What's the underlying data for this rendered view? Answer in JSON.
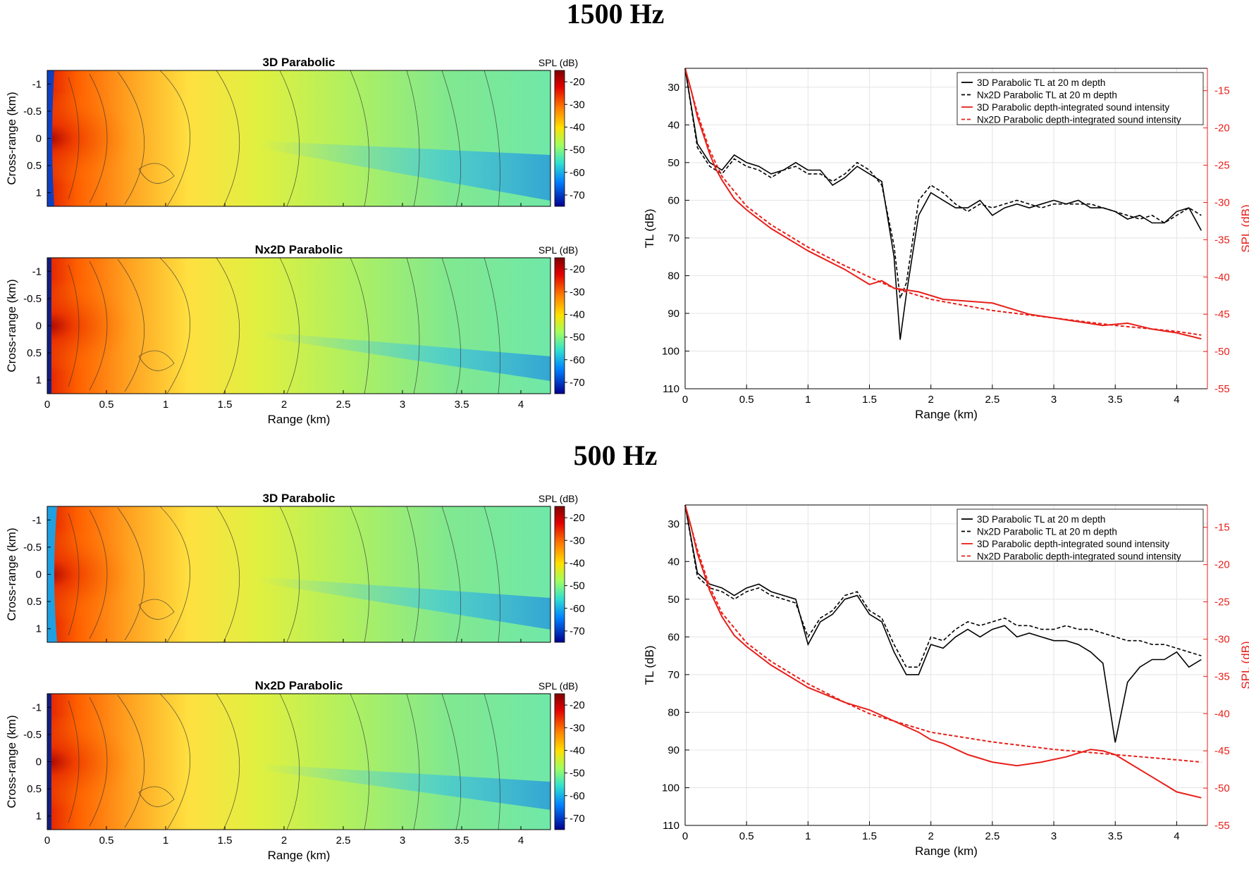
{
  "sections": [
    {
      "title": "1500 Hz",
      "heatmaps": [
        {
          "title": "3D Parabolic",
          "cb_label": "SPL (dB)",
          "ylabel": "Cross-range (km)"
        },
        {
          "title": "Nx2D Parabolic",
          "cb_label": "SPL (dB)",
          "ylabel": "Cross-range (km)",
          "xlabel": "Range (km)"
        }
      ],
      "line_chart": {
        "xlabel": "Range (km)",
        "ylabel_left": "TL (dB)",
        "ylabel_right": "SPL (dB)"
      }
    },
    {
      "title": "500 Hz",
      "heatmaps": [
        {
          "title": "3D Parabolic",
          "cb_label": "SPL (dB)",
          "ylabel": "Cross-range (km)"
        },
        {
          "title": "Nx2D Parabolic",
          "cb_label": "SPL (dB)",
          "ylabel": "Cross-range (km)",
          "xlabel": "Range (km)"
        }
      ],
      "line_chart": {
        "xlabel": "Range (km)",
        "ylabel_left": "TL (dB)",
        "ylabel_right": "SPL (dB)"
      }
    }
  ],
  "legend": [
    "3D Parabolic TL at 20 m depth",
    "Nx2D Parabolic TL at 20 m depth",
    "3D Parabolic depth-integrated sound intensity",
    "Nx2D Parabolic depth-integrated sound intensity"
  ],
  "heatmap_axes": {
    "x_ticks": [
      "0",
      "0.5",
      "1",
      "1.5",
      "2",
      "2.5",
      "3",
      "3.5",
      "4"
    ],
    "y_ticks": [
      "-1",
      "-0.5",
      "0",
      "0.5",
      "1"
    ],
    "cb_ticks": [
      "-20",
      "-30",
      "-40",
      "-50",
      "-60",
      "-70"
    ],
    "xlim": [
      0,
      4.25
    ],
    "ylim": [
      -1.25,
      1.25
    ],
    "clim": [
      -75,
      -15
    ]
  },
  "line_axes": {
    "x_ticks": [
      "0",
      "0.5",
      "1",
      "1.5",
      "2",
      "2.5",
      "3",
      "3.5",
      "4"
    ],
    "left_ticks": [
      "30",
      "40",
      "50",
      "60",
      "70",
      "80",
      "90",
      "100",
      "110"
    ],
    "right_ticks": [
      "-15",
      "-20",
      "-25",
      "-30",
      "-35",
      "-40",
      "-45",
      "-50",
      "-55"
    ],
    "xlim": [
      0,
      4.25
    ],
    "tl_lim": [
      25,
      110
    ],
    "spl_lim": [
      -12,
      -55
    ]
  },
  "colors": {
    "red": "#e8201a",
    "black": "#000000"
  },
  "chart_data": [
    {
      "type": "line",
      "panel": "1500 Hz",
      "xlabel": "Range (km)",
      "ylabel": "TL (dB)",
      "ylabel_right": "SPL (dB)",
      "xlim": [
        0,
        4.25
      ],
      "ylim": [
        110,
        25
      ],
      "ylim_right": [
        -55,
        -12
      ],
      "series": [
        {
          "name": "3D Parabolic TL at 20 m depth",
          "axis": "left",
          "style": "solid",
          "color": "#000000",
          "x": [
            0.0,
            0.1,
            0.2,
            0.3,
            0.4,
            0.5,
            0.6,
            0.7,
            0.8,
            0.9,
            1.0,
            1.1,
            1.2,
            1.3,
            1.4,
            1.5,
            1.6,
            1.7,
            1.75,
            1.8,
            1.9,
            2.0,
            2.1,
            2.2,
            2.3,
            2.4,
            2.5,
            2.6,
            2.7,
            2.8,
            2.9,
            3.0,
            3.1,
            3.2,
            3.3,
            3.4,
            3.5,
            3.6,
            3.7,
            3.8,
            3.9,
            4.0,
            4.1,
            4.2
          ],
          "y": [
            25,
            45,
            50,
            52,
            48,
            50,
            51,
            53,
            52,
            50,
            52,
            52,
            56,
            54,
            51,
            53,
            55,
            75,
            97,
            85,
            64,
            58,
            60,
            62,
            62,
            60,
            64,
            62,
            61,
            62,
            61,
            60,
            61,
            60,
            62,
            62,
            63,
            65,
            64,
            66,
            66,
            63,
            62,
            68
          ]
        },
        {
          "name": "Nx2D Parabolic TL at 20 m depth",
          "axis": "left",
          "style": "dashed",
          "color": "#000000",
          "x": [
            0.0,
            0.1,
            0.2,
            0.3,
            0.4,
            0.5,
            0.6,
            0.7,
            0.8,
            0.9,
            1.0,
            1.1,
            1.2,
            1.3,
            1.4,
            1.5,
            1.6,
            1.7,
            1.75,
            1.8,
            1.9,
            2.0,
            2.1,
            2.2,
            2.3,
            2.4,
            2.5,
            2.6,
            2.7,
            2.8,
            2.9,
            3.0,
            3.1,
            3.2,
            3.3,
            3.4,
            3.5,
            3.6,
            3.7,
            3.8,
            3.9,
            4.0,
            4.1,
            4.2
          ],
          "y": [
            25,
            46,
            51,
            53,
            49,
            51,
            52,
            54,
            52,
            51,
            53,
            53,
            55,
            53,
            50,
            52,
            56,
            72,
            86,
            82,
            60,
            56,
            58,
            61,
            63,
            61,
            62,
            61,
            60,
            61,
            62,
            61,
            61,
            61,
            61,
            62,
            63,
            64,
            65,
            64,
            66,
            64,
            62,
            64
          ]
        },
        {
          "name": "3D Parabolic depth-integrated sound intensity",
          "axis": "right",
          "style": "solid",
          "color": "#e8201a",
          "x": [
            0.0,
            0.05,
            0.1,
            0.15,
            0.2,
            0.25,
            0.3,
            0.4,
            0.5,
            0.7,
            1.0,
            1.3,
            1.5,
            1.6,
            1.7,
            1.9,
            2.1,
            2.5,
            2.8,
            3.0,
            3.2,
            3.4,
            3.6,
            3.8,
            4.0,
            4.2
          ],
          "y": [
            -12,
            -15,
            -18.5,
            -21,
            -23.5,
            -25.5,
            -27,
            -29.5,
            -31,
            -33.5,
            -36.5,
            -39,
            -41,
            -40.5,
            -41.5,
            -42,
            -43,
            -43.5,
            -45,
            -45.5,
            -46,
            -46.5,
            -46.2,
            -47,
            -47.5,
            -48.3
          ]
        },
        {
          "name": "Nx2D Parabolic depth-integrated sound intensity",
          "axis": "right",
          "style": "dashed",
          "color": "#e8201a",
          "x": [
            0.0,
            0.1,
            0.2,
            0.3,
            0.5,
            0.7,
            1.0,
            1.3,
            1.5,
            1.7,
            2.0,
            2.5,
            3.0,
            3.5,
            4.0,
            4.2
          ],
          "y": [
            -12,
            -18,
            -23,
            -26.5,
            -30.5,
            -33,
            -36,
            -38.5,
            -40,
            -41.5,
            -43,
            -44.5,
            -45.5,
            -46.5,
            -47.3,
            -47.8
          ]
        }
      ]
    },
    {
      "type": "line",
      "panel": "500 Hz",
      "xlabel": "Range (km)",
      "ylabel": "TL (dB)",
      "ylabel_right": "SPL (dB)",
      "xlim": [
        0,
        4.25
      ],
      "ylim": [
        110,
        25
      ],
      "ylim_right": [
        -55,
        -12
      ],
      "series": [
        {
          "name": "3D Parabolic TL at 20 m depth",
          "axis": "left",
          "style": "solid",
          "color": "#000000",
          "x": [
            0.0,
            0.1,
            0.2,
            0.3,
            0.4,
            0.5,
            0.6,
            0.7,
            0.8,
            0.9,
            1.0,
            1.1,
            1.2,
            1.3,
            1.4,
            1.5,
            1.6,
            1.7,
            1.8,
            1.9,
            2.0,
            2.1,
            2.2,
            2.3,
            2.4,
            2.5,
            2.6,
            2.7,
            2.8,
            2.9,
            3.0,
            3.1,
            3.2,
            3.3,
            3.4,
            3.5,
            3.6,
            3.7,
            3.8,
            3.9,
            4.0,
            4.1,
            4.2
          ],
          "y": [
            25,
            43,
            46,
            47,
            49,
            47,
            46,
            48,
            49,
            50,
            62,
            56,
            54,
            50,
            49,
            54,
            56,
            64,
            70,
            70,
            62,
            63,
            60,
            58,
            60,
            58,
            57,
            60,
            59,
            60,
            61,
            61,
            62,
            64,
            67,
            88,
            72,
            68,
            66,
            66,
            64,
            68,
            66
          ]
        },
        {
          "name": "Nx2D Parabolic TL at 20 m depth",
          "axis": "left",
          "style": "dashed",
          "color": "#000000",
          "x": [
            0.0,
            0.1,
            0.2,
            0.3,
            0.4,
            0.5,
            0.6,
            0.7,
            0.8,
            0.9,
            1.0,
            1.1,
            1.2,
            1.3,
            1.4,
            1.5,
            1.6,
            1.7,
            1.8,
            1.9,
            2.0,
            2.1,
            2.2,
            2.3,
            2.4,
            2.5,
            2.6,
            2.7,
            2.8,
            2.9,
            3.0,
            3.1,
            3.2,
            3.3,
            3.4,
            3.5,
            3.6,
            3.7,
            3.8,
            3.9,
            4.0,
            4.1,
            4.2
          ],
          "y": [
            25,
            44,
            47,
            48,
            50,
            48,
            47,
            49,
            50,
            51,
            60,
            55,
            53,
            49,
            48,
            53,
            55,
            62,
            68,
            68,
            60,
            61,
            58,
            56,
            57,
            56,
            55,
            57,
            57,
            58,
            58,
            57,
            58,
            58,
            59,
            60,
            61,
            61,
            62,
            62,
            63,
            64,
            65
          ]
        },
        {
          "name": "3D Parabolic depth-integrated sound intensity",
          "axis": "right",
          "style": "solid",
          "color": "#e8201a",
          "x": [
            0.0,
            0.05,
            0.1,
            0.15,
            0.2,
            0.3,
            0.4,
            0.5,
            0.7,
            1.0,
            1.3,
            1.5,
            1.7,
            1.9,
            2.0,
            2.1,
            2.3,
            2.5,
            2.7,
            2.9,
            3.1,
            3.3,
            3.4,
            3.5,
            3.6,
            3.8,
            4.0,
            4.2
          ],
          "y": [
            -12,
            -15,
            -18.5,
            -21,
            -23.5,
            -27,
            -29.5,
            -31,
            -33.5,
            -36.5,
            -38.5,
            -39.5,
            -41,
            -42.5,
            -43.5,
            -44,
            -45.5,
            -46.5,
            -47,
            -46.5,
            -45.8,
            -44.8,
            -45,
            -45.5,
            -46.5,
            -48.5,
            -50.5,
            -51.3
          ]
        },
        {
          "name": "Nx2D Parabolic depth-integrated sound intensity",
          "axis": "right",
          "style": "dashed",
          "color": "#e8201a",
          "x": [
            0.0,
            0.1,
            0.2,
            0.3,
            0.5,
            0.7,
            1.0,
            1.3,
            1.5,
            1.7,
            2.0,
            2.5,
            3.0,
            3.5,
            4.0,
            4.2
          ],
          "y": [
            -12,
            -18,
            -23,
            -26.5,
            -30.5,
            -33,
            -36,
            -38.5,
            -40,
            -41,
            -42.5,
            -43.8,
            -44.8,
            -45.5,
            -46.2,
            -46.5
          ]
        }
      ]
    }
  ]
}
